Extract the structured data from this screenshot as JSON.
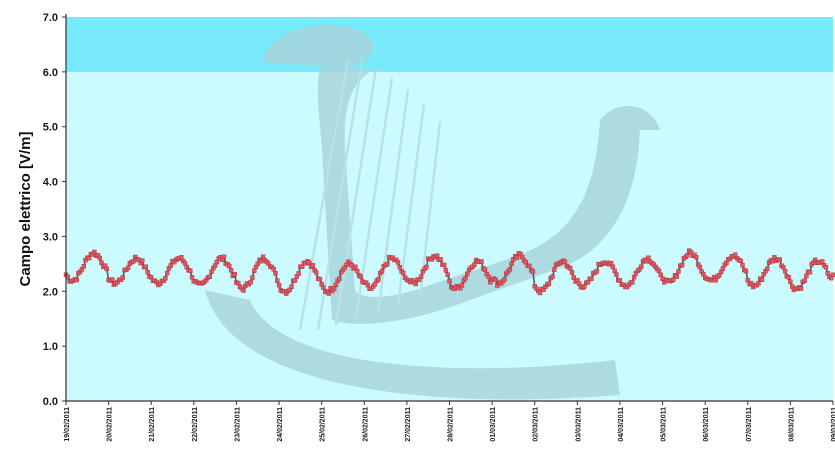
{
  "chart_data": {
    "type": "line",
    "title": "",
    "xlabel": "",
    "ylabel": "Campo elettrico [V/m]",
    "ylim": [
      0,
      7
    ],
    "yticks": [
      "0.0",
      "1.0",
      "2.0",
      "3.0",
      "4.0",
      "5.0",
      "6.0",
      "7.0"
    ],
    "xticks": [
      "19/02/2011",
      "20/02/2011",
      "21/02/2011",
      "22/02/2011",
      "23/02/2011",
      "24/02/2011",
      "25/02/2011",
      "26/02/2011",
      "27/02/2011",
      "28/02/2011",
      "01/03/2011",
      "02/03/2011",
      "03/03/2011",
      "04/03/2011",
      "05/03/2011",
      "06/03/2011",
      "07/03/2011",
      "08/03/2011",
      "09/03/2011"
    ],
    "limit_band": [
      6.0,
      7.0
    ],
    "daily_profile": {
      "days": [
        "19/02/2011",
        "20/02/2011",
        "21/02/2011",
        "22/02/2011",
        "23/02/2011",
        "24/02/2011",
        "25/02/2011",
        "26/02/2011",
        "27/02/2011",
        "28/02/2011",
        "01/03/2011",
        "02/03/2011",
        "03/03/2011",
        "04/03/2011",
        "05/03/2011",
        "06/03/2011",
        "07/03/2011",
        "08/03/2011"
      ],
      "max": [
        2.7,
        2.6,
        2.6,
        2.6,
        2.6,
        2.55,
        2.5,
        2.6,
        2.65,
        2.55,
        2.65,
        2.55,
        2.55,
        2.6,
        2.7,
        2.65,
        2.6,
        2.55
      ],
      "min": [
        2.2,
        2.15,
        2.15,
        2.1,
        2.05,
        2.0,
        2.0,
        2.05,
        2.15,
        2.05,
        2.15,
        2.0,
        2.1,
        2.1,
        2.15,
        2.2,
        2.1,
        2.05
      ],
      "end_value": 2.3
    },
    "grid": false,
    "legend": "none",
    "colors": {
      "plot_bg": "#ccfbff",
      "band": "#78e8fb",
      "series_line": "#3f5f68",
      "markers": "#e05862",
      "watermark": "#a9d6dc"
    }
  }
}
